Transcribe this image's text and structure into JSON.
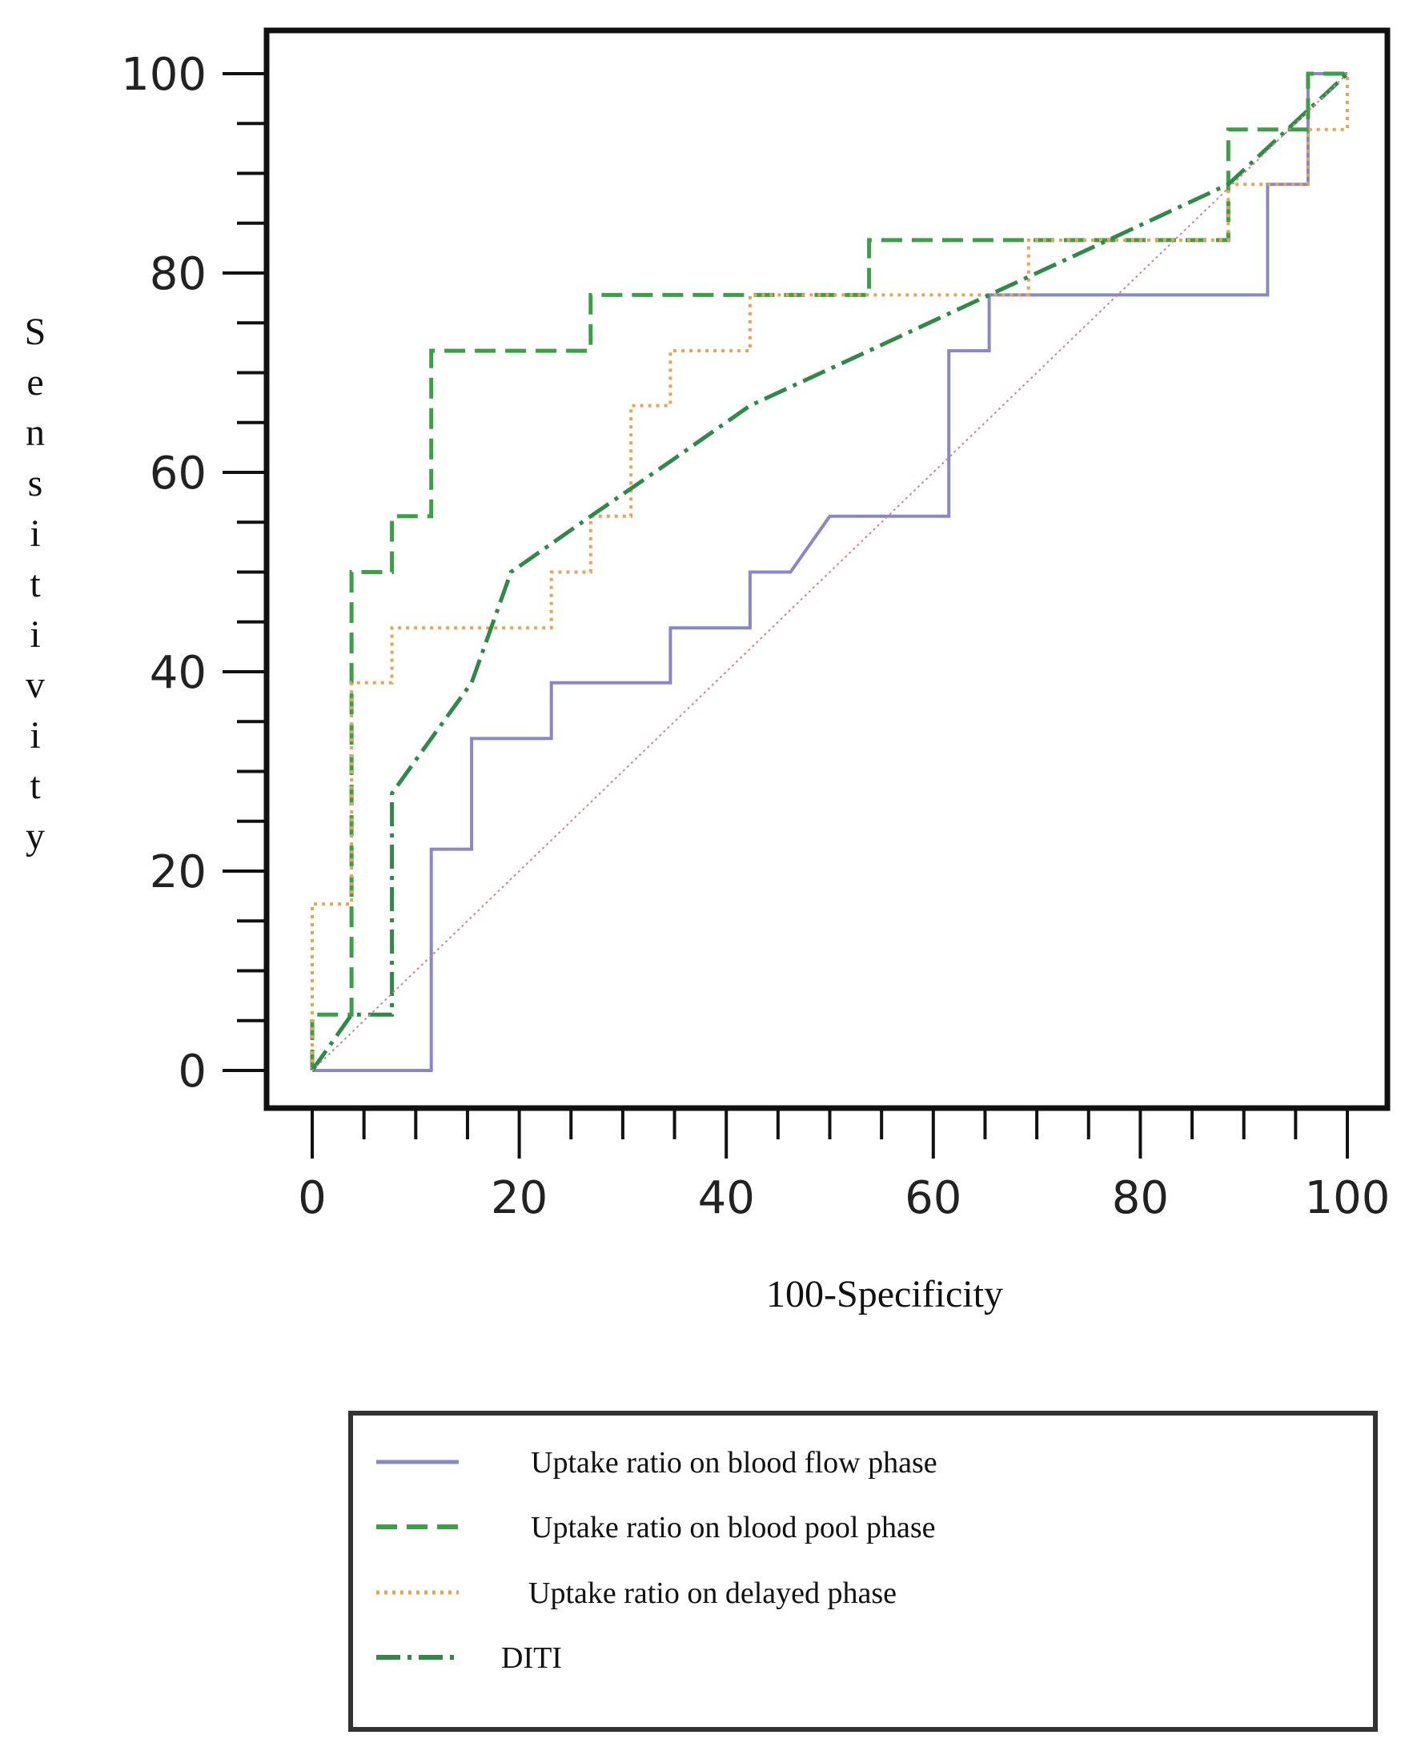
{
  "chart_data": {
    "type": "line",
    "xlabel": "100-Specificity",
    "ylabel": "Sensitivity",
    "xlim": [
      0,
      100
    ],
    "ylim": [
      0,
      100
    ],
    "x_ticks": [
      "0",
      "20",
      "40",
      "60",
      "80",
      "100"
    ],
    "y_ticks": [
      "0",
      "20",
      "40",
      "60",
      "80",
      "100"
    ],
    "grid": false,
    "legend_position": "below",
    "series": [
      {
        "name": "Uptake ratio on blood flow phase",
        "color": "#8a87c8",
        "style": "solid",
        "x": [
          0,
          11.5,
          11.5,
          15.4,
          15.4,
          23.1,
          23.1,
          34.6,
          34.6,
          42.3,
          42.3,
          46.2,
          50,
          61.5,
          61.5,
          65.4,
          65.4,
          92.3,
          92.3,
          96.2,
          96.2,
          100
        ],
        "y": [
          0,
          0,
          22.2,
          22.2,
          33.3,
          33.3,
          38.9,
          38.9,
          44.4,
          44.4,
          50,
          50,
          55.6,
          55.6,
          72.2,
          72.2,
          77.8,
          77.8,
          88.9,
          88.9,
          100,
          100
        ]
      },
      {
        "name": "Uptake ratio on blood pool phase",
        "color": "#3aa046",
        "style": "dashed",
        "x": [
          0,
          0,
          3.8,
          3.8,
          7.7,
          7.7,
          11.5,
          11.5,
          26.9,
          26.9,
          53.8,
          53.8,
          88.5,
          88.5,
          96.2,
          96.2,
          100
        ],
        "y": [
          0,
          5.6,
          5.6,
          50,
          50,
          55.6,
          55.6,
          72.2,
          72.2,
          77.8,
          77.8,
          83.3,
          83.3,
          94.4,
          94.4,
          100,
          100
        ]
      },
      {
        "name": "Uptake ratio on delayed phase",
        "color": "#e6a552",
        "style": "dotted",
        "x": [
          0,
          0,
          3.8,
          3.8,
          7.7,
          7.7,
          23.1,
          23.1,
          26.9,
          26.9,
          30.8,
          30.8,
          34.6,
          34.6,
          42.3,
          42.3,
          69.2,
          69.2,
          88.5,
          88.5,
          96.2,
          96.2,
          100,
          100
        ],
        "y": [
          0,
          16.7,
          16.7,
          38.9,
          38.9,
          44.4,
          44.4,
          50,
          50,
          55.6,
          55.6,
          66.7,
          66.7,
          72.2,
          72.2,
          77.8,
          77.8,
          83.3,
          83.3,
          88.9,
          88.9,
          94.4,
          94.4,
          100
        ]
      },
      {
        "name": "DITI",
        "color": "#2f8a4a",
        "style": "dashdot",
        "x": [
          0,
          3.8,
          7.7,
          7.7,
          11.5,
          15.4,
          19.2,
          26.9,
          34.6,
          42.3,
          53.8,
          65.4,
          76.9,
          88.5,
          100
        ],
        "y": [
          0,
          5.6,
          5.6,
          27.8,
          33.3,
          38.9,
          50,
          55.6,
          61.1,
          66.7,
          72.2,
          77.8,
          83.3,
          88.9,
          100
        ]
      },
      {
        "color": "#c98a8a",
        "style": "dotted-thin",
        "x": [
          0,
          100
        ],
        "y": [
          0,
          100
        ]
      }
    ]
  }
}
